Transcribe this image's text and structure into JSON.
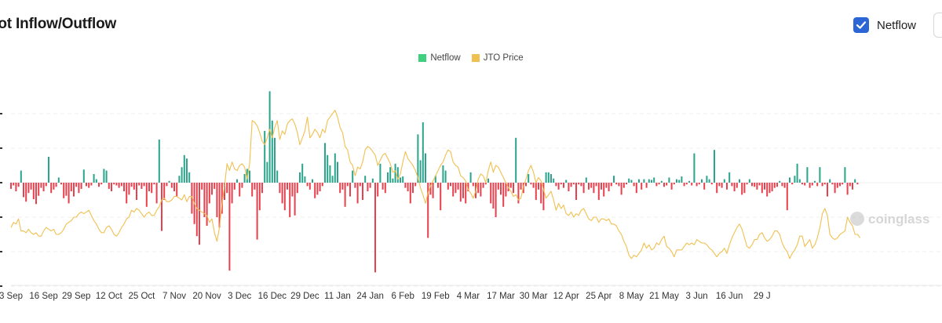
{
  "header": {
    "title": "pot Inflow/Outflow",
    "netflow_toggle_label": "Netflow",
    "netflow_toggle_checked": true
  },
  "colors": {
    "positive": "#2aa58c",
    "negative": "#e8404d",
    "price": "#f0c050",
    "legend_netflow": "#3fd07e",
    "legend_price": "#f0c050",
    "checkbox": "#2c65d6"
  },
  "watermark": "coinglass",
  "chart_data": {
    "type": "bar",
    "legend": [
      {
        "name": "Netflow",
        "color": "#3fd07e"
      },
      {
        "name": "JTO Price",
        "color": "#f0c050"
      }
    ],
    "x_tick_labels": [
      "3 Sep",
      "16 Sep",
      "29 Sep",
      "12 Oct",
      "25 Oct",
      "7 Nov",
      "20 Nov",
      "3 Dec",
      "16 Dec",
      "29 Dec",
      "11 Jan",
      "24 Jan",
      "6 Feb",
      "19 Feb",
      "4 Mar",
      "17 Mar",
      "30 Mar",
      "12 Apr",
      "25 Apr",
      "8 May",
      "21 May",
      "3 Jun",
      "16 Jun",
      "29 J"
    ],
    "start_date": "2023-09-03",
    "y_axis_labels_visible": false,
    "ylim": [
      -3,
      2.75
    ],
    "grid": true,
    "series": [
      {
        "name": "Netflow",
        "type": "bar",
        "values": [
          -0.18,
          -0.08,
          -0.25,
          -0.12,
          0.35,
          -0.42,
          -0.55,
          -0.3,
          -0.2,
          -0.48,
          -0.62,
          -0.38,
          -0.15,
          -0.25,
          -0.1,
          0.75,
          -0.3,
          -0.2,
          -0.12,
          0.15,
          -0.05,
          -0.45,
          -0.38,
          -0.6,
          -0.25,
          -0.4,
          -0.12,
          -0.3,
          -0.18,
          0.38,
          -0.1,
          -0.15,
          -0.08,
          0.25,
          0.1,
          -0.12,
          -0.05,
          0.4,
          0.35,
          -0.18,
          -0.25,
          -0.05,
          -0.08,
          -0.15,
          -0.1,
          -0.25,
          -0.6,
          -0.35,
          -0.12,
          -0.2,
          -0.5,
          -0.08,
          -0.18,
          -0.1,
          -0.7,
          -0.25,
          -0.3,
          -0.05,
          -0.6,
          1.25,
          -1.4,
          -0.5,
          -0.1,
          0.05,
          -0.15,
          -0.25,
          -0.4,
          0.2,
          0.45,
          0.8,
          0.7,
          0.3,
          -0.9,
          -1.2,
          -1.55,
          -1.8,
          -0.2,
          -1.0,
          -1.25,
          -0.6,
          -0.35,
          -0.18,
          -1.0,
          -1.3,
          -0.9,
          -0.5,
          -0.3,
          -2.55,
          -0.6,
          -0.2,
          0.1,
          -0.4,
          -0.15,
          0.25,
          0.4,
          0.35,
          -0.4,
          -0.2,
          -1.65,
          -0.8,
          -0.3,
          1.5,
          0.6,
          2.65,
          1.8,
          1.3,
          0.35,
          -0.3,
          -0.6,
          -0.8,
          -0.2,
          -1.0,
          -0.4,
          -0.95,
          -0.3,
          0.3,
          0.55,
          0.18,
          -0.1,
          -0.2,
          0.1,
          -0.45,
          -0.35,
          -0.25,
          -0.1,
          1.15,
          0.8,
          0.5,
          0.2,
          0.85,
          0.6,
          -0.3,
          -0.2,
          -0.7,
          -0.1,
          -0.4,
          0.35,
          -0.15,
          -0.6,
          -0.1,
          -0.5,
          0.2,
          -0.25,
          -0.15,
          0.12,
          -2.6,
          -0.4,
          0.55,
          -0.2,
          -0.3,
          0.3,
          0.45,
          0.12,
          0.55,
          0.45,
          0.15,
          0.18,
          -0.15,
          -0.25,
          -0.6,
          -0.3,
          -0.1,
          1.4,
          0.65,
          1.75,
          0.85,
          -1.6,
          -0.35,
          -0.45,
          0.2,
          -0.15,
          -0.8,
          0.5,
          0.35,
          -0.2,
          -0.1,
          -0.4,
          -0.3,
          -0.2,
          -0.55,
          -0.45,
          -0.6,
          -0.25,
          0.3,
          -0.1,
          -0.45,
          -0.3,
          -0.4,
          -0.15,
          -0.05,
          0.12,
          -0.6,
          -0.75,
          -1.0,
          -0.2,
          -0.35,
          -0.7,
          -0.4,
          -0.25,
          -0.15,
          -0.3,
          1.3,
          -0.6,
          -0.2,
          -0.3,
          -0.1,
          0.25,
          -0.05,
          -0.15,
          -0.5,
          -0.2,
          -0.6,
          -0.8,
          0.3,
          0.3,
          0.25,
          0.12,
          -0.1,
          -0.2,
          -0.05,
          -0.15,
          0.08,
          -0.25,
          -0.12,
          -0.05,
          -0.5,
          -0.05,
          -0.1,
          -0.3,
          0.15,
          -0.2,
          -0.15,
          -0.3,
          -0.1,
          -0.5,
          -0.2,
          -0.4,
          -0.15,
          -0.25,
          -0.1,
          0.2,
          -0.05,
          -0.1,
          -0.35,
          -0.15,
          -0.05,
          0.12,
          0.08,
          -0.1,
          -0.3,
          0.1,
          -0.2,
          0.1,
          -0.15,
          0.1,
          0.08,
          0.15,
          -0.1,
          -0.05,
          0.05,
          -0.12,
          -0.08,
          0.15,
          -0.2,
          -0.05,
          0.1,
          0.08,
          0.18,
          -0.1,
          -0.05,
          0.05,
          -0.08,
          0.85,
          -0.1,
          -0.05,
          0.1,
          -0.2,
          0.2,
          0.1,
          -0.05,
          0.95,
          -0.3,
          -0.1,
          -0.15,
          0.1,
          -0.2,
          0.3,
          -0.1,
          -0.25,
          -0.15,
          0.1,
          -0.35,
          -0.3,
          -0.05,
          0.1,
          -0.1,
          -0.12,
          -0.2,
          -0.08,
          -0.3,
          -0.2,
          -0.4,
          -0.3,
          -0.25,
          -0.15,
          -0.12,
          0.05,
          -0.1,
          -0.15,
          -0.8,
          0.15,
          -0.05,
          0.2,
          0.55,
          0.1,
          -0.05,
          -0.08,
          0.45,
          -0.15,
          -0.08,
          0.05,
          -0.1,
          0.45,
          -0.1,
          -0.05,
          -0.4,
          0.1,
          -0.05,
          -0.3,
          -0.15,
          -0.1,
          -0.05,
          0.45,
          -0.35,
          -0.1,
          -0.2,
          0.1,
          -0.05
        ]
      },
      {
        "name": "JTO Price",
        "type": "line",
        "values": [
          -1.3,
          -1.15,
          -1.2,
          -1.05,
          -1.4,
          -1.4,
          -1.45,
          -1.35,
          -1.45,
          -1.5,
          -1.45,
          -1.55,
          -1.55,
          -1.4,
          -1.3,
          -1.35,
          -1.4,
          -1.35,
          -1.5,
          -1.5,
          -1.45,
          -1.35,
          -1.2,
          -1.15,
          -1.1,
          -1.0,
          -1.0,
          -0.9,
          -0.85,
          -0.9,
          -0.85,
          -0.8,
          -0.95,
          -1.1,
          -1.2,
          -1.35,
          -1.45,
          -1.45,
          -1.3,
          -1.25,
          -1.35,
          -1.5,
          -1.55,
          -1.45,
          -1.3,
          -1.2,
          -1.05,
          -1.0,
          -0.8,
          -0.85,
          -0.75,
          -0.8,
          -0.9,
          -1.0,
          -0.9,
          -0.85,
          -0.95,
          -0.95,
          -0.8,
          -0.7,
          -0.5,
          -0.45,
          -0.55,
          -0.55,
          -0.5,
          -0.4,
          -0.4,
          -0.45,
          -0.5,
          -0.35,
          -0.55,
          -0.4,
          -0.4,
          -0.6,
          -0.75,
          -0.8,
          -0.85,
          -0.9,
          -0.95,
          -1.15,
          -1.05,
          -1.45,
          -1.7,
          -1.3,
          -0.6,
          -0.1,
          0.55,
          0.35,
          0.6,
          0.4,
          0.35,
          0.5,
          0.55,
          0.45,
          0.1,
          0.55,
          1.8,
          1.75,
          1.65,
          1.45,
          1.2,
          1.1,
          1.3,
          1.55,
          1.3,
          1.6,
          1.8,
          1.25,
          1.5,
          1.4,
          1.7,
          1.8,
          1.85,
          1.7,
          1.45,
          1.1,
          1.3,
          1.5,
          1.9,
          1.3,
          1.4,
          1.55,
          1.45,
          1.3,
          1.55,
          1.45,
          1.8,
          1.9,
          2.0,
          2.1,
          1.9,
          1.6,
          1.45,
          1.05,
          0.95,
          0.6,
          0.5,
          0.2,
          0.45,
          0.4,
          0.6,
          0.95,
          1.05,
          1.0,
          0.9,
          0.8,
          0.5,
          0.65,
          0.8,
          0.85,
          0.7,
          0.55,
          0.3,
          0.35,
          0.1,
          0.25,
          0.6,
          0.9,
          0.7,
          0.6,
          0.5,
          0.35,
          0.15,
          -0.15,
          -0.35,
          -0.6,
          -0.3,
          -0.1,
          0.05,
          0.2,
          0.35,
          0.5,
          0.6,
          0.8,
          0.95,
          0.9,
          0.6,
          0.5,
          0.45,
          0.2,
          0.15,
          0.05,
          -0.2,
          -0.3,
          -0.45,
          -0.25,
          0.1,
          0.25,
          0.2,
          0.0,
          0.35,
          0.6,
          0.3,
          0.5,
          0.45,
          0.3,
          0.15,
          0.0,
          -0.15,
          -0.25,
          -0.4,
          -0.35,
          -0.5,
          -0.45,
          -0.1,
          0.1,
          0.35,
          0.5,
          0.3,
          0.0,
          0.15,
          0.05,
          -0.2,
          -0.45,
          -0.35,
          -0.25,
          -0.5,
          -0.8,
          -0.6,
          -0.75,
          -0.65,
          -0.9,
          -0.95,
          -0.85,
          -1.0,
          -0.9,
          -0.95,
          -0.8,
          -0.75,
          -0.9,
          -1.05,
          -1.1,
          -1.0,
          -1.0,
          -1.15,
          -1.05,
          -1.05,
          -1.1,
          -1.05,
          -1.2,
          -1.2,
          -1.25,
          -1.4,
          -1.5,
          -1.7,
          -1.85,
          -2.1,
          -2.2,
          -2.1,
          -2.15,
          -2.05,
          -1.95,
          -1.75,
          -1.9,
          -1.8,
          -1.95,
          -1.9,
          -1.75,
          -1.8,
          -1.65,
          -1.55,
          -1.85,
          -1.9,
          -2.0,
          -2.15,
          -1.95,
          -1.95,
          -1.95,
          -1.85,
          -1.75,
          -1.8,
          -1.75,
          -1.8,
          -1.65,
          -1.7,
          -1.75,
          -1.75,
          -1.8,
          -1.9,
          -1.95,
          -2.05,
          -2.15,
          -2.05,
          -2.0,
          -1.9,
          -2.05,
          -1.8,
          -1.6,
          -1.45,
          -1.3,
          -1.2,
          -1.35,
          -1.6,
          -1.85,
          -1.9,
          -1.8,
          -1.65,
          -1.65,
          -1.5,
          -1.45,
          -1.6,
          -1.7,
          -1.65,
          -1.55,
          -1.4,
          -1.4,
          -1.5,
          -1.75,
          -1.9,
          -2.0,
          -2.2,
          -2.05,
          -1.95,
          -1.8,
          -1.55,
          -1.55,
          -1.85,
          -1.75,
          -1.65,
          -1.9,
          -1.8,
          -1.6,
          -1.3,
          -0.9,
          -0.75,
          -0.95,
          -1.5,
          -1.6,
          -1.65,
          -1.6,
          -1.5,
          -1.45,
          -1.4,
          -1.0,
          -1.15,
          -1.25,
          -1.5,
          -1.5,
          -1.6
        ]
      }
    ]
  }
}
